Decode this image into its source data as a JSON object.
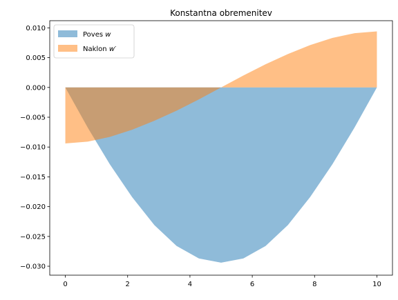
{
  "chart_data": {
    "type": "area",
    "title": "Konstantna obremenitev",
    "xlabel": "",
    "ylabel": "",
    "xlim": [
      -0.5,
      10.5
    ],
    "ylim": [
      -0.0315,
      0.0112
    ],
    "x_ticks": [
      0,
      2,
      4,
      6,
      8,
      10
    ],
    "x_tick_labels": [
      "0",
      "2",
      "4",
      "6",
      "8",
      "10"
    ],
    "y_ticks": [
      0.01,
      0.005,
      0.0,
      -0.005,
      -0.01,
      -0.015,
      -0.02,
      -0.025,
      -0.03
    ],
    "y_tick_labels": [
      "0.010",
      "0.005",
      "0.000",
      "−0.005",
      "−0.010",
      "−0.015",
      "−0.020",
      "−0.025",
      "−0.030"
    ],
    "grid": false,
    "legend_position": "top-left",
    "x": [
      0,
      0.714,
      1.429,
      2.143,
      2.857,
      3.571,
      4.286,
      5.0,
      5.714,
      6.429,
      7.143,
      7.857,
      8.571,
      9.286,
      10.0
    ],
    "series": [
      {
        "name": "Poves w",
        "name_parts": [
          "Poves ",
          "w",
          ""
        ],
        "color": "#1f77b4",
        "alpha": 0.5,
        "values": [
          0.0,
          -0.0067,
          -0.0129,
          -0.0184,
          -0.0231,
          -0.0266,
          -0.0287,
          -0.0294,
          -0.0287,
          -0.0266,
          -0.0231,
          -0.0184,
          -0.0129,
          -0.0067,
          0.0
        ]
      },
      {
        "name": "Naklon w′",
        "name_parts": [
          "Naklon ",
          "w",
          "′"
        ],
        "color": "#ff7f0e",
        "alpha": 0.5,
        "values": [
          -0.0094,
          -0.0091,
          -0.0083,
          -0.0071,
          -0.0056,
          -0.0039,
          -0.002,
          0.0,
          0.002,
          0.0039,
          0.0056,
          0.0071,
          0.0083,
          0.0091,
          0.0094
        ]
      }
    ]
  }
}
